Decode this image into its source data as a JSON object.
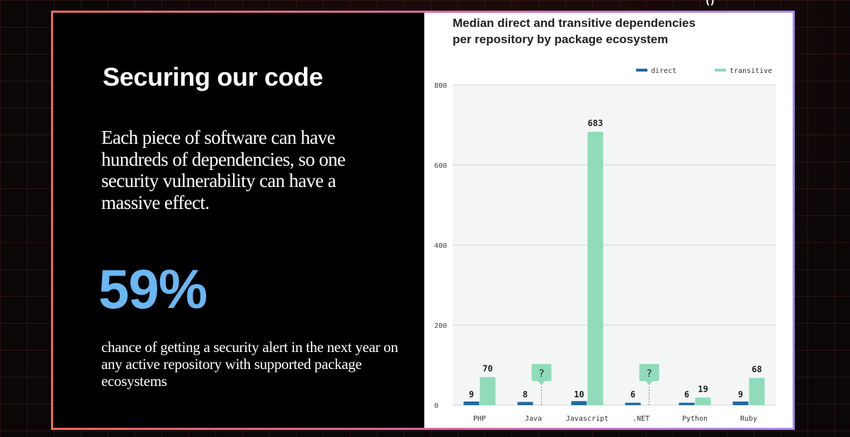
{
  "slide": {
    "title": "Securing our code",
    "body": "Each piece of software can have hundreds of dependencies, so one security vulnerability can have a massive effect.",
    "stat_value": "59%",
    "stat_caption": "chance of getting a security alert in the next year on any active repository with supported package ecosystems"
  },
  "colors": {
    "frame_start": "#ec6a5e",
    "frame_end": "#a58ef2",
    "stat": "#6ab7f2",
    "direct": "#1f6aa0",
    "transitive": "#8fdbba"
  },
  "chart_data": {
    "type": "bar",
    "title_lines": [
      "Median direct and transitive dependencies",
      "per repository by package ecosystem"
    ],
    "categories": [
      "PHP",
      "Java",
      "Javascript",
      ".NET",
      "Python",
      "Ruby"
    ],
    "series": [
      {
        "name": "direct",
        "values": [
          9,
          8,
          10,
          6,
          6,
          9
        ]
      },
      {
        "name": "transitive",
        "values": [
          70,
          null,
          683,
          null,
          19,
          68
        ]
      }
    ],
    "unknown_label": "?",
    "ylim": [
      0,
      800
    ],
    "yticks": [
      0,
      200,
      400,
      600,
      800
    ],
    "grid": true,
    "legend": "top-right"
  }
}
